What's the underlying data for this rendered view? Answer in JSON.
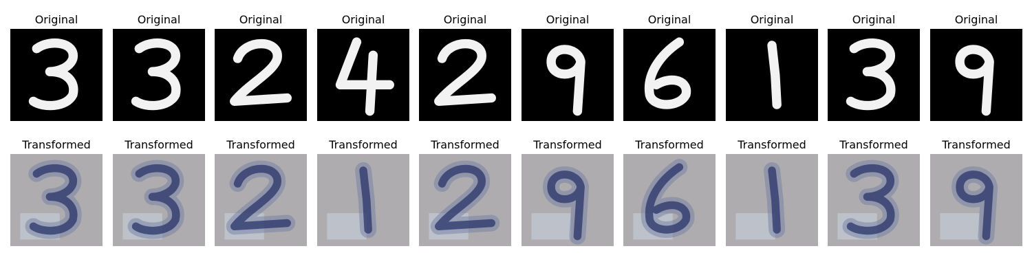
{
  "rows": [
    {
      "title": "Original",
      "kind": "original",
      "digits": [
        "3",
        "3",
        "2",
        "4",
        "2",
        "9",
        "6",
        "1",
        "3",
        "9"
      ]
    },
    {
      "title": "Transformed",
      "kind": "transformed",
      "digits": [
        "3",
        "3",
        "2",
        "1",
        "2",
        "9",
        "6",
        "1",
        "3",
        "9"
      ]
    }
  ],
  "colors": {
    "background": "#ffffff",
    "original_bg": "#000000",
    "original_stroke": "#f2f2f2",
    "transformed_bg": "#b8b6b2",
    "transformed_stroke": "#2b3568"
  }
}
